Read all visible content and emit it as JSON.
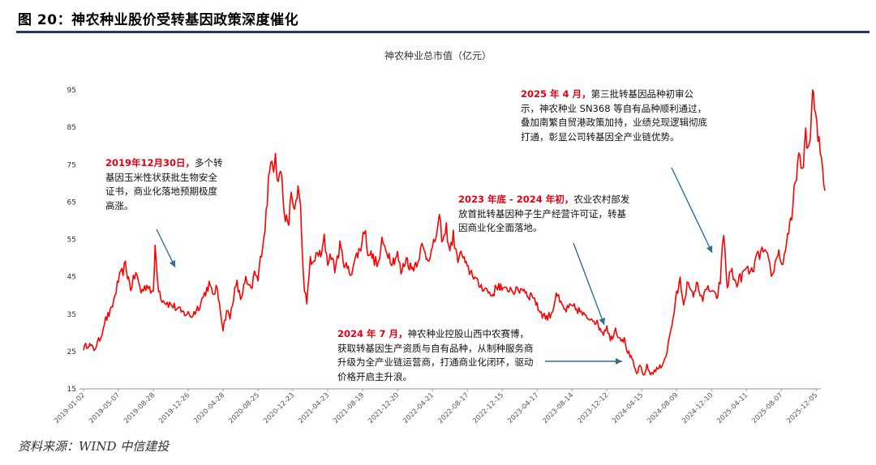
{
  "figure": {
    "title": "图 20：神农种业股价受转基因政策深度催化",
    "source": "资料来源：WIND  中信建投"
  },
  "annotations": [
    {
      "highlight": "2019年12月30日，",
      "text": "多个转基因玉米性状获批生物安全证书，商业化落地预期极度高涨。"
    },
    {
      "highlight": "2023 年底 - 2024 年初，",
      "text": "农业农村部发放首批转基因种子生产经营许可证，转基因商业化全面落地。"
    },
    {
      "highlight": "2025 年 4 月，",
      "text": "第三批转基因品种初审公示，神农种业 SN368 等自有品种顺利通过，叠加南繁自贸港政策加持，业绩兑现逻辑彻底打通，彰显公司转基因全产业链优势。"
    },
    {
      "highlight": "2024 年 7 月，",
      "text": "神农种业控股山西中农赛博，获取转基因生产资质与自有品种，从制种服务商升级为全产业链运营商，打通商业化闭环，驱动价格开启主升浪。"
    }
  ],
  "chart_data": {
    "type": "line",
    "title": "神农种业总市值（亿元）",
    "xlabel": "",
    "ylabel": "",
    "ylim": [
      15,
      95
    ],
    "yticks": [
      15,
      25,
      35,
      45,
      55,
      65,
      75,
      85,
      95
    ],
    "color": "#ff0000",
    "categories": [
      "2019-01-02",
      "2019-05-07",
      "2019-08-28",
      "2019-12-26",
      "2020-04-28",
      "2020-08-25",
      "2020-12-23",
      "2021-04-23",
      "2021-08-19",
      "2021-12-20",
      "2022-04-21",
      "2022-08-17",
      "2022-12-15",
      "2023-04-17",
      "2023-08-14",
      "2023-12-12",
      "2024-04-15",
      "2024-08-09",
      "2024-12-10",
      "2025-04-11",
      "2025-08-07",
      "2025-12-05"
    ],
    "keypoints": [
      [
        0,
        26
      ],
      [
        0.15,
        27
      ],
      [
        0.3,
        25.5
      ],
      [
        0.5,
        29
      ],
      [
        0.6,
        33
      ],
      [
        0.8,
        36
      ],
      [
        1.0,
        44
      ],
      [
        1.2,
        48
      ],
      [
        1.35,
        42
      ],
      [
        1.5,
        46
      ],
      [
        1.65,
        41
      ],
      [
        1.85,
        43
      ],
      [
        2.0,
        40
      ],
      [
        2.05,
        53
      ],
      [
        2.15,
        42
      ],
      [
        2.25,
        39
      ],
      [
        2.4,
        38
      ],
      [
        2.6,
        37
      ],
      [
        2.8,
        35.5
      ],
      [
        3.0,
        35
      ],
      [
        3.1,
        34.5
      ],
      [
        3.3,
        37
      ],
      [
        3.5,
        41
      ],
      [
        3.6,
        43
      ],
      [
        3.7,
        40
      ],
      [
        3.8,
        42
      ],
      [
        3.9,
        38
      ],
      [
        4.0,
        31
      ],
      [
        4.1,
        36
      ],
      [
        4.2,
        34
      ],
      [
        4.3,
        40
      ],
      [
        4.4,
        43
      ],
      [
        4.5,
        39
      ],
      [
        4.65,
        44
      ],
      [
        4.8,
        41
      ],
      [
        4.9,
        46
      ],
      [
        5.0,
        44
      ],
      [
        5.1,
        52
      ],
      [
        5.2,
        58
      ],
      [
        5.3,
        70
      ],
      [
        5.4,
        78
      ],
      [
        5.45,
        74
      ],
      [
        5.5,
        80
      ],
      [
        5.55,
        70
      ],
      [
        5.65,
        74
      ],
      [
        5.75,
        63
      ],
      [
        5.85,
        58
      ],
      [
        5.95,
        66
      ],
      [
        6.05,
        63
      ],
      [
        6.15,
        69
      ],
      [
        6.22,
        63
      ],
      [
        6.3,
        45
      ],
      [
        6.4,
        37
      ],
      [
        6.5,
        50
      ],
      [
        6.6,
        48
      ],
      [
        6.7,
        52
      ],
      [
        6.8,
        50
      ],
      [
        6.9,
        55
      ],
      [
        7.0,
        49
      ],
      [
        7.1,
        51
      ],
      [
        7.2,
        47
      ],
      [
        7.35,
        53
      ],
      [
        7.5,
        48
      ],
      [
        7.65,
        46
      ],
      [
        7.8,
        50
      ],
      [
        7.95,
        53
      ],
      [
        8.05,
        58
      ],
      [
        8.15,
        52
      ],
      [
        8.3,
        50
      ],
      [
        8.45,
        48
      ],
      [
        8.55,
        54
      ],
      [
        8.7,
        52
      ],
      [
        8.85,
        49
      ],
      [
        9.0,
        51
      ],
      [
        9.1,
        46
      ],
      [
        9.25,
        50
      ],
      [
        9.4,
        47
      ],
      [
        9.55,
        49
      ],
      [
        9.7,
        53
      ],
      [
        9.85,
        50
      ],
      [
        10.0,
        52
      ],
      [
        10.1,
        56
      ],
      [
        10.2,
        60
      ],
      [
        10.3,
        54
      ],
      [
        10.4,
        58
      ],
      [
        10.5,
        52
      ],
      [
        10.6,
        56
      ],
      [
        10.7,
        50
      ],
      [
        10.85,
        51
      ],
      [
        11.0,
        47
      ],
      [
        11.15,
        46
      ],
      [
        11.3,
        43
      ],
      [
        11.5,
        42
      ],
      [
        11.7,
        40
      ],
      [
        11.9,
        43
      ],
      [
        12.05,
        41
      ],
      [
        12.2,
        42
      ],
      [
        12.4,
        41
      ],
      [
        12.6,
        42
      ],
      [
        12.75,
        40
      ],
      [
        12.9,
        40
      ],
      [
        13.0,
        37
      ],
      [
        13.15,
        35
      ],
      [
        13.3,
        34
      ],
      [
        13.45,
        36
      ],
      [
        13.55,
        41
      ],
      [
        13.65,
        38
      ],
      [
        13.8,
        36
      ],
      [
        14.0,
        37
      ],
      [
        14.2,
        36
      ],
      [
        14.4,
        34
      ],
      [
        14.6,
        34
      ],
      [
        14.75,
        32
      ],
      [
        14.9,
        30
      ],
      [
        15.0,
        32
      ],
      [
        15.1,
        28
      ],
      [
        15.25,
        31
      ],
      [
        15.35,
        29
      ],
      [
        15.5,
        28
      ],
      [
        15.6,
        25
      ],
      [
        15.75,
        22
      ],
      [
        15.85,
        19
      ],
      [
        15.95,
        21
      ],
      [
        16.05,
        18.5
      ],
      [
        16.15,
        21
      ],
      [
        16.25,
        19
      ],
      [
        16.4,
        20
      ],
      [
        16.55,
        21
      ],
      [
        16.7,
        24
      ],
      [
        16.8,
        29
      ],
      [
        16.9,
        34
      ],
      [
        17.0,
        40
      ],
      [
        17.1,
        44
      ],
      [
        17.2,
        38
      ],
      [
        17.3,
        43
      ],
      [
        17.45,
        40
      ],
      [
        17.6,
        43
      ],
      [
        17.75,
        39
      ],
      [
        17.9,
        42
      ],
      [
        18.0,
        41
      ],
      [
        18.15,
        39
      ],
      [
        18.25,
        44
      ],
      [
        18.35,
        57
      ],
      [
        18.45,
        42
      ],
      [
        18.55,
        47
      ],
      [
        18.7,
        43
      ],
      [
        18.85,
        45
      ],
      [
        19.0,
        47
      ],
      [
        19.15,
        46
      ],
      [
        19.3,
        50
      ],
      [
        19.45,
        52
      ],
      [
        19.6,
        50
      ],
      [
        19.75,
        45
      ],
      [
        19.9,
        52
      ],
      [
        20.05,
        48
      ],
      [
        20.15,
        55
      ],
      [
        20.3,
        60
      ],
      [
        20.4,
        71
      ],
      [
        20.5,
        77
      ],
      [
        20.6,
        72
      ],
      [
        20.7,
        84
      ],
      [
        20.8,
        78
      ],
      [
        20.9,
        95
      ],
      [
        20.95,
        90
      ],
      [
        21.05,
        82
      ],
      [
        21.15,
        77
      ],
      [
        21.25,
        68
      ]
    ]
  }
}
